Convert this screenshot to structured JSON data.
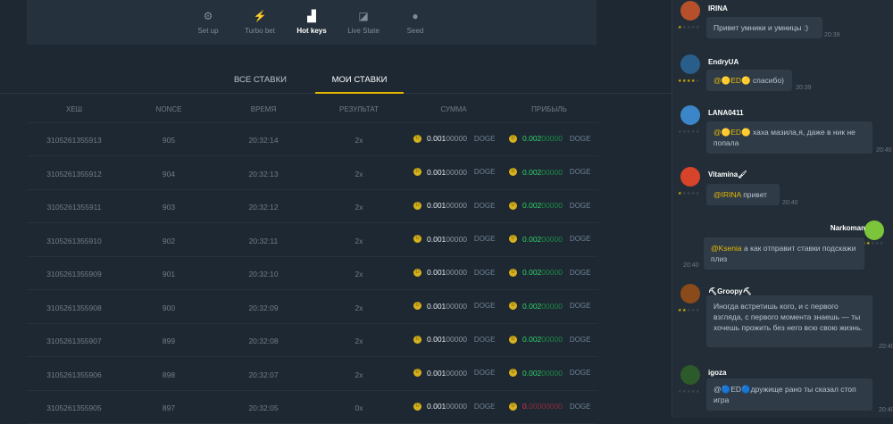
{
  "toolbar": {
    "items": [
      {
        "label": "Set up",
        "icon": "gear-icon"
      },
      {
        "label": "Turbo bet",
        "icon": "lightning-icon"
      },
      {
        "label": "Hot keys",
        "icon": "keys-icon",
        "active": true
      },
      {
        "label": "Live State",
        "icon": "chart-icon"
      },
      {
        "label": "Seed",
        "icon": "seed-icon"
      }
    ]
  },
  "tabs": [
    {
      "label": "ВСЕ СТАВКИ"
    },
    {
      "label": "МОИ СТАВКИ",
      "active": true
    }
  ],
  "table": {
    "headers": [
      "ХЕШ",
      "NONCE",
      "ВРЕМЯ",
      "РЕЗУЛЬТАТ",
      "СУММА",
      "ПРИБЫЛЬ"
    ],
    "rows": [
      {
        "hash": "3105261355913",
        "nonce": "905",
        "time": "20:32:14",
        "result": "2x",
        "sum_a": "0.001",
        "sum_b": "00000",
        "cur": "DOGE",
        "profit_a": "0.002",
        "profit_b": "00000",
        "win": true
      },
      {
        "hash": "3105261355912",
        "nonce": "904",
        "time": "20:32:13",
        "result": "2x",
        "sum_a": "0.001",
        "sum_b": "00000",
        "cur": "DOGE",
        "profit_a": "0.002",
        "profit_b": "00000",
        "win": true
      },
      {
        "hash": "3105261355911",
        "nonce": "903",
        "time": "20:32:12",
        "result": "2x",
        "sum_a": "0.001",
        "sum_b": "00000",
        "cur": "DOGE",
        "profit_a": "0.002",
        "profit_b": "00000",
        "win": true
      },
      {
        "hash": "3105261355910",
        "nonce": "902",
        "time": "20:32:11",
        "result": "2x",
        "sum_a": "0.001",
        "sum_b": "00000",
        "cur": "DOGE",
        "profit_a": "0.002",
        "profit_b": "00000",
        "win": true
      },
      {
        "hash": "3105261355909",
        "nonce": "901",
        "time": "20:32:10",
        "result": "2x",
        "sum_a": "0.001",
        "sum_b": "00000",
        "cur": "DOGE",
        "profit_a": "0.002",
        "profit_b": "00000",
        "win": true
      },
      {
        "hash": "3105261355908",
        "nonce": "900",
        "time": "20:32:09",
        "result": "2x",
        "sum_a": "0.001",
        "sum_b": "00000",
        "cur": "DOGE",
        "profit_a": "0.002",
        "profit_b": "00000",
        "win": true
      },
      {
        "hash": "3105261355907",
        "nonce": "899",
        "time": "20:32:08",
        "result": "2x",
        "sum_a": "0.001",
        "sum_b": "00000",
        "cur": "DOGE",
        "profit_a": "0.002",
        "profit_b": "00000",
        "win": true
      },
      {
        "hash": "3105261355906",
        "nonce": "898",
        "time": "20:32:07",
        "result": "2x",
        "sum_a": "0.001",
        "sum_b": "00000",
        "cur": "DOGE",
        "profit_a": "0.002",
        "profit_b": "00000",
        "win": true
      },
      {
        "hash": "3105261355905",
        "nonce": "897",
        "time": "20:32:05",
        "result": "0x",
        "sum_a": "0.001",
        "sum_b": "00000",
        "cur": "DOGE",
        "profit_a": "0.",
        "profit_b": "00000000",
        "win": false
      }
    ]
  },
  "colors": {
    "accent": "#e6b800",
    "win": "#2fd36b",
    "loss": "#e0334f"
  },
  "chat": [
    {
      "name": "IRINA",
      "stars": 1,
      "mention": "",
      "text": "Привет умники и умницы :)",
      "time": "20:39",
      "avatar": "#b5502a"
    },
    {
      "name": "EndryUA",
      "stars": 4,
      "mention": "@🟡ED🟡",
      "text": " спасибо)",
      "time": "20:39",
      "avatar": "#2a5e8a"
    },
    {
      "name": "LANA0411",
      "stars": 0,
      "mention": "@🟡ED🟡",
      "text": " хаха мазила,я, даже в ник не попала",
      "time": "20:40",
      "avatar": "#3b86c8"
    },
    {
      "name": "Vitamina🖌",
      "stars": 1,
      "mention": "@IRINA",
      "text": " привет",
      "time": "20:40",
      "avatar": "#d8442a"
    },
    {
      "name": "Narkoman",
      "stars": 2,
      "mention": "@Ksenia",
      "text": " а как отправит ставки подскажи плиз",
      "time": "20:40",
      "avatar": "#7cc43a",
      "right": true
    },
    {
      "name": "⛏Groopy⛏",
      "stars": 2,
      "mention": "",
      "text": "Иногда встретишь кого, и с первого взгляда, с первого момента знаешь — ты хочешь прожить без него всю свою жизнь.",
      "time": "20:40",
      "avatar": "#8a4a1a"
    },
    {
      "name": "igoza",
      "stars": 0,
      "mention": "",
      "text": "@🔵ED🔵дружище рано ты сказал стоп игра",
      "time": "20:40",
      "avatar": "#2d5a2a"
    }
  ]
}
